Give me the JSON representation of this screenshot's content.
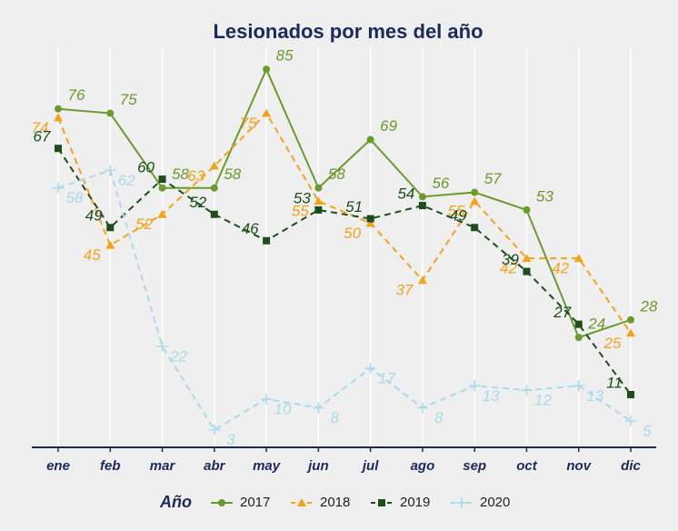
{
  "chart_data": {
    "type": "line",
    "title": "Lesionados por mes del año",
    "categories": [
      "ene",
      "feb",
      "mar",
      "abr",
      "may",
      "jun",
      "jul",
      "ago",
      "sep",
      "oct",
      "nov",
      "dic"
    ],
    "legend_title": "Año",
    "series": [
      {
        "name": "2017",
        "color": "#6b9a2f",
        "marker": "circle",
        "dashed": false,
        "values": [
          76,
          75,
          58,
          58,
          85,
          58,
          69,
          56,
          57,
          53,
          24,
          28
        ]
      },
      {
        "name": "2018",
        "color": "#f4a21e",
        "marker": "triangle",
        "dashed": true,
        "values": [
          74,
          45,
          52,
          63,
          75,
          55,
          50,
          37,
          55,
          42,
          42,
          25
        ]
      },
      {
        "name": "2019",
        "color": "#1d4d1b",
        "marker": "square",
        "dashed": true,
        "values": [
          67,
          49,
          60,
          52,
          46,
          53,
          51,
          54,
          49,
          39,
          27,
          11
        ]
      },
      {
        "name": "2020",
        "color": "#a9dbe8",
        "marker": "plus",
        "dashed": true,
        "values": [
          58,
          62,
          22,
          3,
          10,
          8,
          17,
          8,
          13,
          12,
          13,
          5
        ]
      }
    ],
    "ylim": [
      -1,
      90
    ],
    "grid": true,
    "legend": "bottom"
  }
}
